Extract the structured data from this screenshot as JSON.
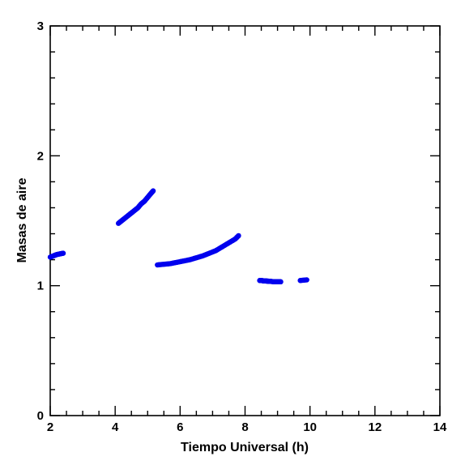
{
  "chart_data": {
    "type": "scatter",
    "xlabel": "Tiempo Universal (h)",
    "ylabel": "Masas de aire",
    "xlim": [
      2,
      14
    ],
    "ylim": [
      0,
      3
    ],
    "x_ticks": [
      2,
      4,
      6,
      8,
      10,
      12,
      14
    ],
    "y_ticks": [
      0,
      1,
      2,
      3
    ],
    "x_tick_labels": [
      "2",
      "4",
      "6",
      "8",
      "10",
      "12",
      "14"
    ],
    "y_tick_labels": [
      "0",
      "1",
      "2",
      "3"
    ],
    "grid": false,
    "marker_color": "#0000ee",
    "series": [
      {
        "x": [
          2.0,
          2.1,
          2.2,
          2.3,
          2.4
        ],
        "y": [
          1.22,
          1.23,
          1.24,
          1.245,
          1.25
        ]
      },
      {
        "x": [
          4.1,
          4.2,
          4.3,
          4.4,
          4.5,
          4.6,
          4.7,
          4.8,
          4.9,
          5.0,
          5.1,
          5.17
        ],
        "y": [
          1.48,
          1.5,
          1.52,
          1.54,
          1.56,
          1.58,
          1.6,
          1.63,
          1.65,
          1.68,
          1.71,
          1.73
        ]
      },
      {
        "x": [
          5.3,
          5.5,
          5.7,
          5.9,
          6.1,
          6.3,
          6.5,
          6.7,
          6.9,
          7.1,
          7.3,
          7.5,
          7.7,
          7.8
        ],
        "y": [
          1.16,
          1.165,
          1.17,
          1.18,
          1.19,
          1.2,
          1.215,
          1.23,
          1.25,
          1.27,
          1.3,
          1.33,
          1.36,
          1.385
        ]
      },
      {
        "x": [
          8.45,
          8.5,
          8.55,
          8.6,
          8.65,
          8.7,
          8.75,
          8.8,
          8.9,
          8.95,
          9.0,
          9.05,
          9.1,
          9.7,
          9.9
        ],
        "y": [
          1.04,
          1.04,
          1.038,
          1.037,
          1.036,
          1.035,
          1.034,
          1.033,
          1.03,
          1.03,
          1.03,
          1.03,
          1.03,
          1.04,
          1.045
        ]
      }
    ]
  }
}
